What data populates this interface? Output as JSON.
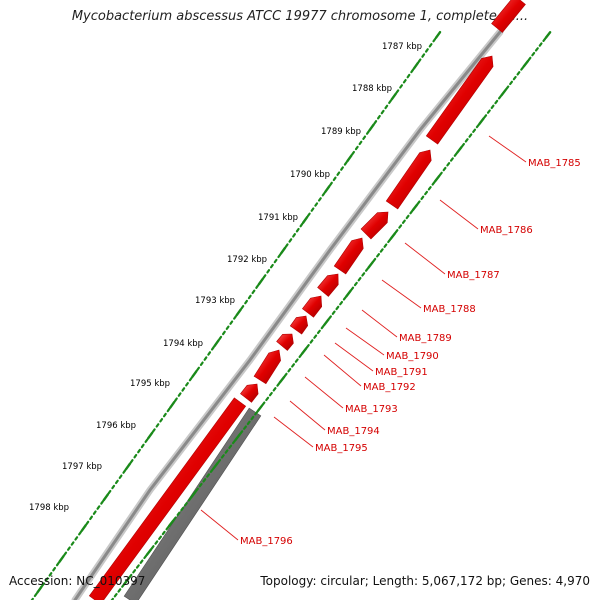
{
  "title": "Mycobacterium abscessus ATCC 19977 chromosome 1, complete se...",
  "footer": {
    "accession": "Accession: NC_010397",
    "summary": "Topology: circular; Length: 5,067,172 bp; Genes: 4,970"
  },
  "colors": {
    "gene_forward": "#e00000",
    "gene_reverse": "#707070",
    "backbone": "#9a9a9a",
    "gc_ticks": "#1a8a1a",
    "label_text": "#d40000",
    "leader_line": "#e02020"
  },
  "ruler": {
    "unit": "kbp",
    "labels": [
      "1787 kbp",
      "1788 kbp",
      "1789 kbp",
      "1790 kbp",
      "1791 kbp",
      "1792 kbp",
      "1793 kbp",
      "1794 kbp",
      "1795 kbp",
      "1796 kbp",
      "1797 kbp",
      "1798 kbp"
    ]
  },
  "genes": [
    {
      "name": "MAB_1785",
      "strand": "+"
    },
    {
      "name": "MAB_1786",
      "strand": "+"
    },
    {
      "name": "MAB_1787",
      "strand": "+"
    },
    {
      "name": "MAB_1788",
      "strand": "+"
    },
    {
      "name": "MAB_1789",
      "strand": "+"
    },
    {
      "name": "MAB_1790",
      "strand": "+"
    },
    {
      "name": "MAB_1791",
      "strand": "+"
    },
    {
      "name": "MAB_1792",
      "strand": "+"
    },
    {
      "name": "MAB_1793",
      "strand": "+"
    },
    {
      "name": "MAB_1794",
      "strand": "+"
    },
    {
      "name": "MAB_1795",
      "strand": "+"
    },
    {
      "name": "MAB_1796",
      "strand": "-"
    }
  ]
}
